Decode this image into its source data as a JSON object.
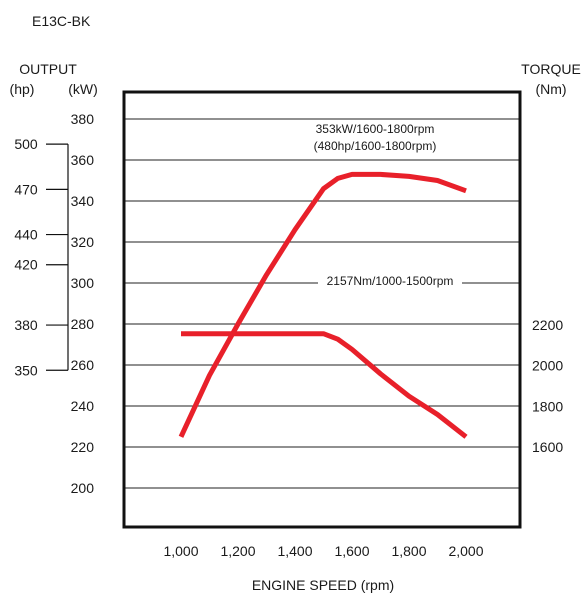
{
  "chart_data": {
    "type": "line",
    "title": "E13C-BK",
    "xlabel": "ENGINE SPEED (rpm)",
    "xlim": [
      800,
      2200
    ],
    "x_ticks": [
      "1,000",
      "1,200",
      "1,400",
      "1,600",
      "1,800",
      "2,000"
    ],
    "left_axis": {
      "label": "OUTPUT",
      "hp_unit": "(hp)",
      "kw_unit": "(kW)",
      "kw_range": [
        180,
        390
      ],
      "kw_ticks": [
        "200",
        "220",
        "240",
        "260",
        "280",
        "300",
        "320",
        "340",
        "360",
        "380"
      ],
      "hp_ticks": [
        "500",
        "470",
        "440",
        "420",
        "380",
        "350"
      ]
    },
    "right_axis": {
      "label": "TORQUE",
      "unit": "(Nm)",
      "ticks": [
        "2200",
        "2000",
        "1800",
        "1600"
      ]
    },
    "series": [
      {
        "axis": "output_kW",
        "color": "#e8202a",
        "x": [
          1000,
          1100,
          1200,
          1300,
          1400,
          1500,
          1550,
          1600,
          1650,
          1700,
          1800,
          1900,
          2000
        ],
        "y": [
          225,
          255,
          280,
          304,
          326,
          346,
          351,
          353,
          353,
          353,
          352,
          350,
          345
        ]
      },
      {
        "axis": "torque_Nm",
        "color": "#e8202a",
        "x": [
          1000,
          1100,
          1200,
          1300,
          1400,
          1450,
          1500,
          1550,
          1600,
          1700,
          1800,
          1900,
          2000
        ],
        "y": [
          2157,
          2157,
          2157,
          2157,
          2157,
          2157,
          2157,
          2130,
          2080,
          1960,
          1850,
          1760,
          1650
        ]
      }
    ],
    "annotations": {
      "output_peak_1": "353kW/1600-1800rpm",
      "output_peak_2": "(480hp/1600-1800rpm)",
      "torque_peak": "2157Nm/1000-1500rpm"
    }
  }
}
